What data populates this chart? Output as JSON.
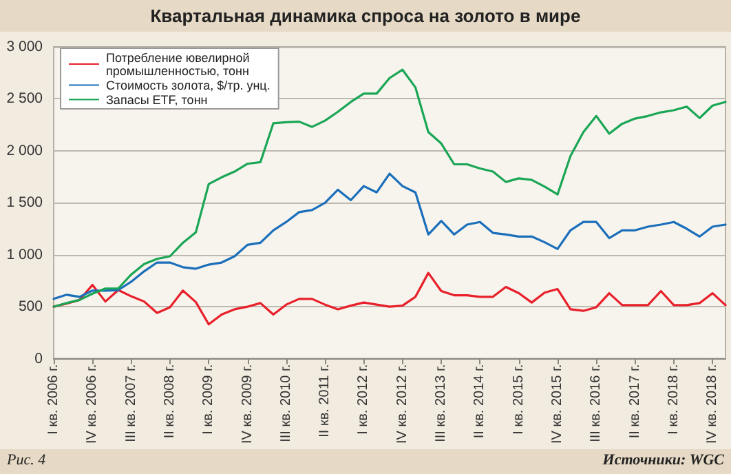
{
  "chart_data": {
    "type": "line",
    "title": "Квартальная динамика спроса на золото в мире",
    "annotations": [
      "Рис. 4",
      "Источники: WGC"
    ],
    "categories": [
      "I кв. 2006 г.",
      null,
      null,
      "IV кв. 2006 г.",
      null,
      null,
      "III кв. 2007 г.",
      null,
      null,
      "II кв. 2008 г.",
      null,
      null,
      "I кв. 2009 г.",
      null,
      null,
      "IV кв. 2009 г.",
      null,
      null,
      "III кв. 2010 г.",
      null,
      null,
      "II кв. 2011 г.",
      null,
      null,
      "I кв. 2012 г.",
      null,
      null,
      "IV кв. 2012 г.",
      null,
      null,
      "III кв. 2013 г.",
      null,
      null,
      "II кв. 2014 г.",
      null,
      null,
      "I кв. 2015 г.",
      null,
      null,
      "IV кв. 2015 г.",
      null,
      null,
      "III кв. 2016 г.",
      null,
      null,
      "II кв. 2017 г.",
      null,
      null,
      "I кв. 2018 г.",
      null,
      null,
      "IV кв. 2018 г.",
      null
    ],
    "series": [
      {
        "name": "Потребление ювелирной промышленностью, тонн",
        "color": "#e8202a",
        "values": [
          500,
          530,
          565,
          710,
          550,
          660,
          600,
          550,
          440,
          495,
          655,
          545,
          330,
          425,
          475,
          500,
          535,
          425,
          520,
          575,
          575,
          520,
          475,
          510,
          540,
          520,
          500,
          510,
          595,
          825,
          650,
          610,
          610,
          595,
          595,
          690,
          630,
          540,
          635,
          670,
          475,
          460,
          495,
          630,
          515,
          515,
          515,
          650,
          515,
          515,
          535,
          630,
          515
        ]
      },
      {
        "name": "Стоимость золота, $/тр. унц.",
        "color": "#1b6fba",
        "values": [
          575,
          615,
          595,
          655,
          655,
          660,
          740,
          840,
          925,
          925,
          880,
          865,
          905,
          925,
          985,
          1095,
          1115,
          1235,
          1315,
          1410,
          1430,
          1500,
          1625,
          1525,
          1660,
          1600,
          1780,
          1660,
          1600,
          1195,
          1325,
          1195,
          1290,
          1315,
          1210,
          1195,
          1175,
          1175,
          1120,
          1055,
          1235,
          1315,
          1315,
          1160,
          1235,
          1235,
          1270,
          1290,
          1315,
          1250,
          1175,
          1270,
          1290
        ]
      },
      {
        "name": "Запасы ETF, тонн",
        "color": "#1aa655",
        "values": [
          500,
          535,
          565,
          625,
          675,
          675,
          810,
          910,
          960,
          985,
          1115,
          1215,
          1680,
          1745,
          1800,
          1875,
          1890,
          2265,
          2275,
          2280,
          2230,
          2290,
          2375,
          2470,
          2550,
          2550,
          2700,
          2780,
          2610,
          2180,
          2070,
          1870,
          1870,
          1830,
          1800,
          1700,
          1735,
          1720,
          1655,
          1580,
          1950,
          2180,
          2335,
          2165,
          2260,
          2310,
          2335,
          2370,
          2390,
          2425,
          2315,
          2435,
          2470
        ]
      }
    ],
    "ylim": [
      0,
      3000
    ],
    "yticks": [
      0,
      500,
      {
        "value": 1000,
        "label": "1 000"
      },
      {
        "value": 1500,
        "label": "1 500"
      },
      {
        "value": 2000,
        "label": "2 000"
      },
      {
        "value": 2500,
        "label": "2 500"
      },
      {
        "value": 3000,
        "label": "3 000"
      }
    ],
    "grid": "y",
    "legend": "top left",
    "marker": "none",
    "line_style": "solid"
  }
}
